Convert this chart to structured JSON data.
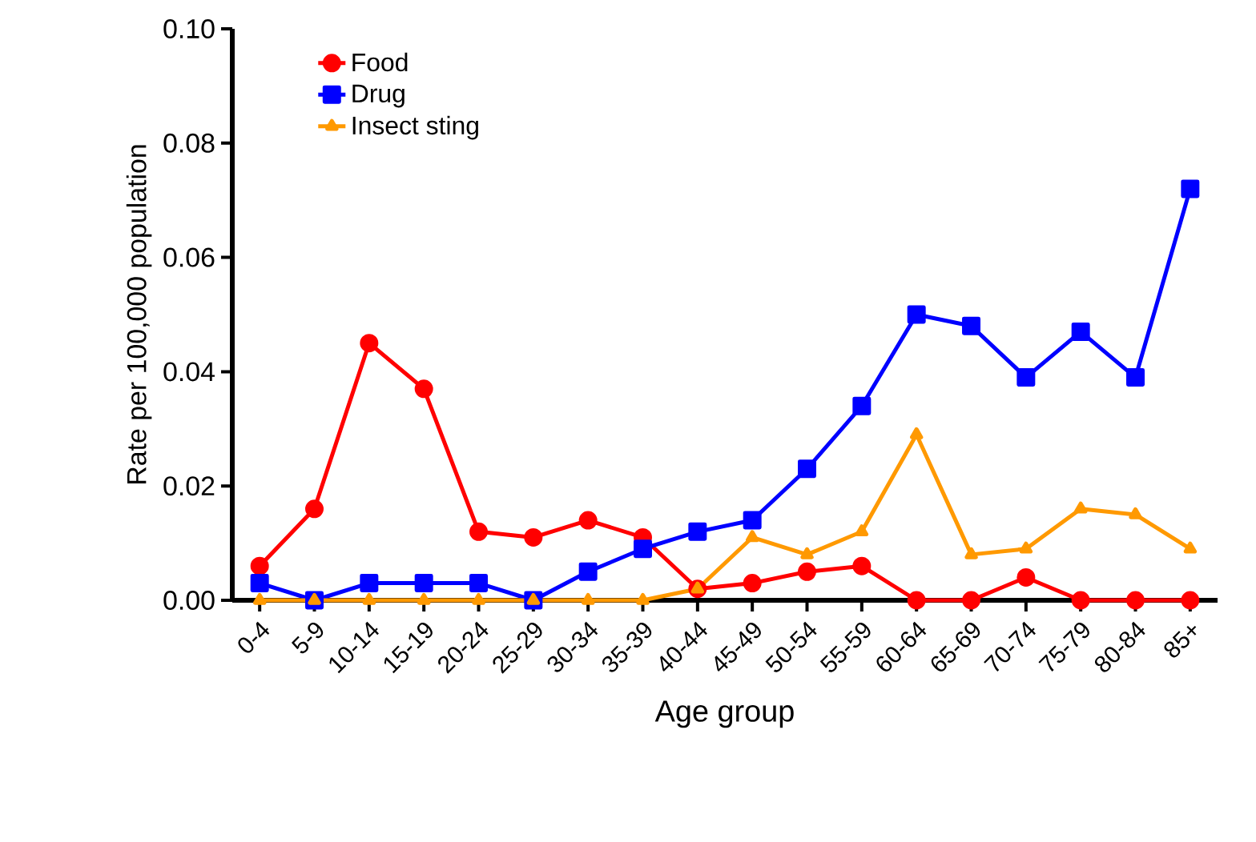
{
  "chart_data": {
    "type": "line",
    "xlabel": "Age group",
    "ylabel": "Rate per 100,000 population",
    "categories": [
      "0-4",
      "5-9",
      "10-14",
      "15-19",
      "20-24",
      "25-29",
      "30-34",
      "35-39",
      "40-44",
      "45-49",
      "50-54",
      "55-59",
      "60-64",
      "65-69",
      "70-74",
      "75-79",
      "80-84",
      "85+"
    ],
    "series": [
      {
        "name": "Food",
        "color": "#ff0000",
        "marker": "circle",
        "values": [
          0.006,
          0.016,
          0.045,
          0.037,
          0.012,
          0.011,
          0.014,
          0.011,
          0.002,
          0.003,
          0.005,
          0.006,
          0,
          0,
          0.004,
          0,
          0,
          0
        ]
      },
      {
        "name": "Drug",
        "color": "#0000ff",
        "marker": "square",
        "values": [
          0.003,
          0,
          0.003,
          0.003,
          0.003,
          0,
          0.005,
          0.009,
          0.012,
          0.014,
          0.023,
          0.034,
          0.05,
          0.048,
          0.039,
          0.047,
          0.039,
          0.072
        ]
      },
      {
        "name": "Insect sting",
        "color": "#ff9900",
        "marker": "triangle",
        "values": [
          0,
          0,
          0,
          0,
          0,
          0,
          0,
          0,
          0.002,
          0.011,
          0.008,
          0.012,
          0.029,
          0.008,
          0.009,
          0.016,
          0.015,
          0.009
        ]
      }
    ],
    "ylim": [
      0,
      0.1
    ],
    "yticks": [
      {
        "value": 0,
        "label": "0.00"
      },
      {
        "value": 0.02,
        "label": "0.02"
      },
      {
        "value": 0.04,
        "label": "0.04"
      },
      {
        "value": 0.06,
        "label": "0.06"
      },
      {
        "value": 0.08,
        "label": "0.08"
      },
      {
        "value": 0.1,
        "label": "0.10"
      }
    ],
    "legend": "top left",
    "grid": false,
    "line_style": "solid"
  }
}
